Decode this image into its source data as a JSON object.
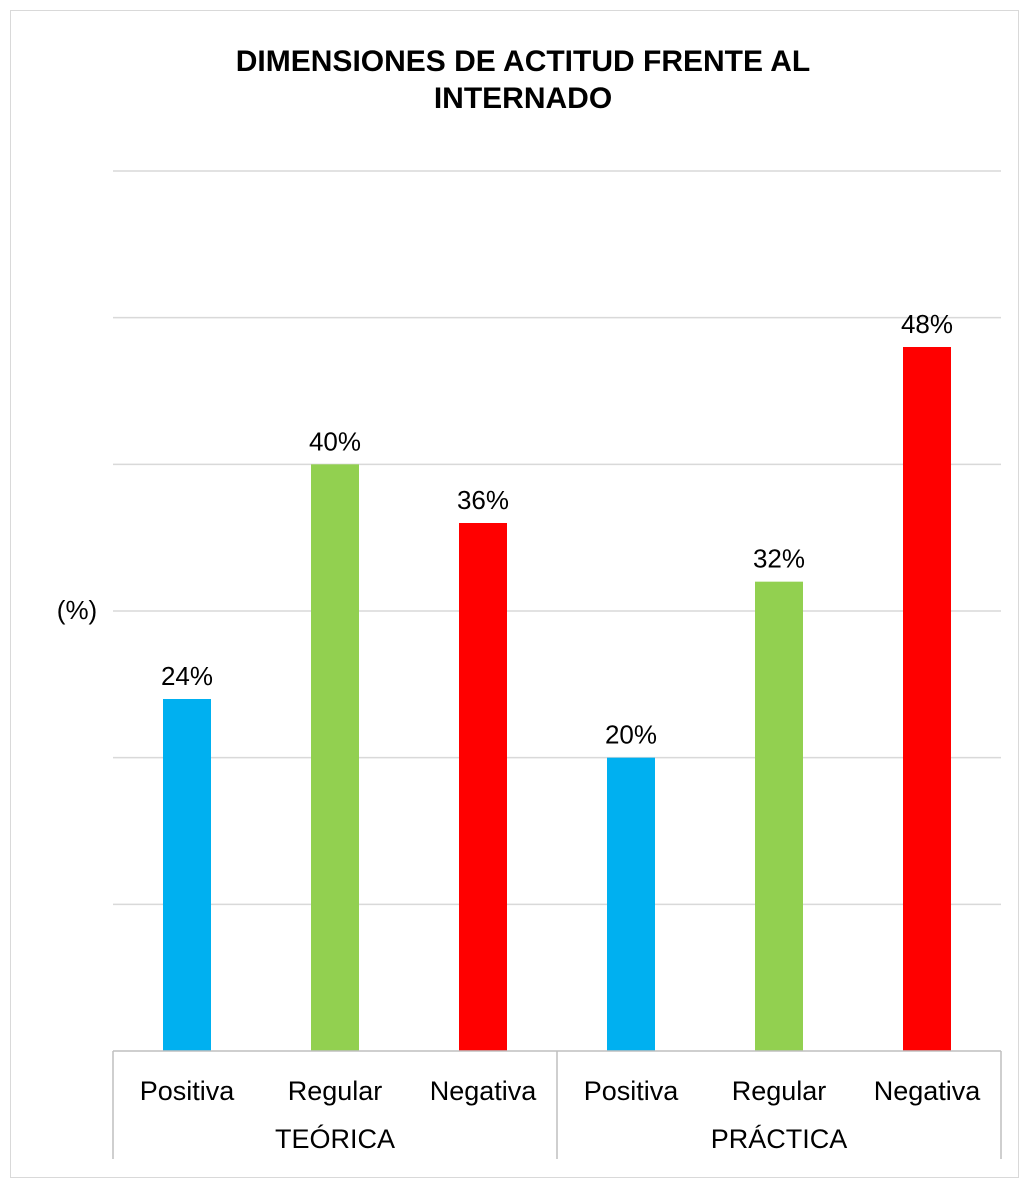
{
  "chart_data": {
    "type": "bar",
    "title_lines": [
      "DIMENSIONES DE ACTITUD FRENTE AL",
      "INTERNADO"
    ],
    "ylabel": "(%)",
    "xlabel": "",
    "ylim": [
      0,
      60
    ],
    "y_grid_step": 10,
    "grid": true,
    "y_tick_labels_shown": false,
    "legend": "none",
    "groups": [
      {
        "name": "TEÓRICA",
        "categories": [
          "Positiva",
          "Regular",
          "Negativa"
        ],
        "values": [
          24,
          40,
          36
        ],
        "labels": [
          "24%",
          "40%",
          "36%"
        ]
      },
      {
        "name": "PRÁCTICA",
        "categories": [
          "Positiva",
          "Regular",
          "Negativa"
        ],
        "values": [
          20,
          32,
          48
        ],
        "labels": [
          "20%",
          "32%",
          "48%"
        ]
      }
    ],
    "category_colors": {
      "Positiva": "#00b0f0",
      "Regular": "#92d050",
      "Negativa": "#ff0000"
    }
  }
}
